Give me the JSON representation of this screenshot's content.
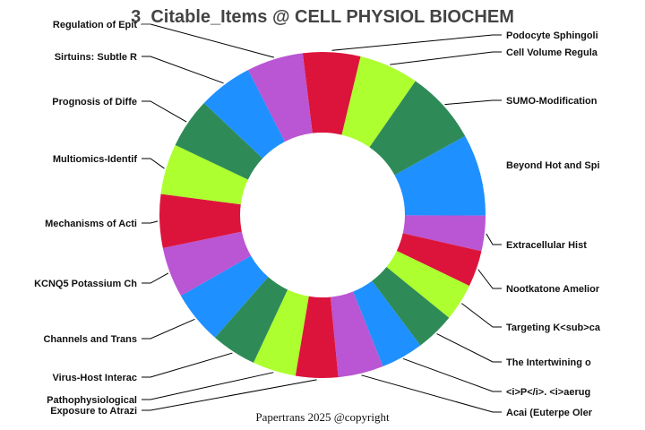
{
  "chart_data": {
    "type": "pie",
    "hole": true,
    "title": "3_Citable_Items @ CELL PHYSIOL BIOCHEM",
    "direction": "clockwise",
    "labels": [
      "Podocyte Sphingoli",
      "Cell Volume Regula",
      "SUMO-Modification",
      "Beyond Hot and Spi",
      "Extracellular Hist",
      "Nootkatone Amelior",
      "Targeting K<sub>ca",
      "The Intertwining o",
      "<i>P</i>. <i>aerug",
      "Acai (Euterpe Oler",
      "Exposure to Atrazi",
      "Pathophysiological",
      "Virus-Host Interac",
      "Channels and Trans",
      "KCNQ5 Potassium Ch",
      "Mechanisms of Acti",
      "Multiomics-Identif",
      "Prognosis of Diffe",
      "Sirtuins: Subtle R",
      "Regulation of Epit"
    ],
    "values_percent": [
      5.7,
      5.9,
      7.3,
      8.1,
      3.5,
      3.6,
      3.7,
      3.9,
      4.2,
      4.5,
      4.2,
      4.3,
      4.5,
      5.3,
      5.0,
      5.3,
      5.0,
      5.0,
      5.4,
      5.6
    ],
    "colors": [
      "#dc143c",
      "#adff2f",
      "#2e8b57",
      "#1e90ff",
      "#ba55d3"
    ]
  },
  "footer": "Papertrans 2025 @copyright"
}
